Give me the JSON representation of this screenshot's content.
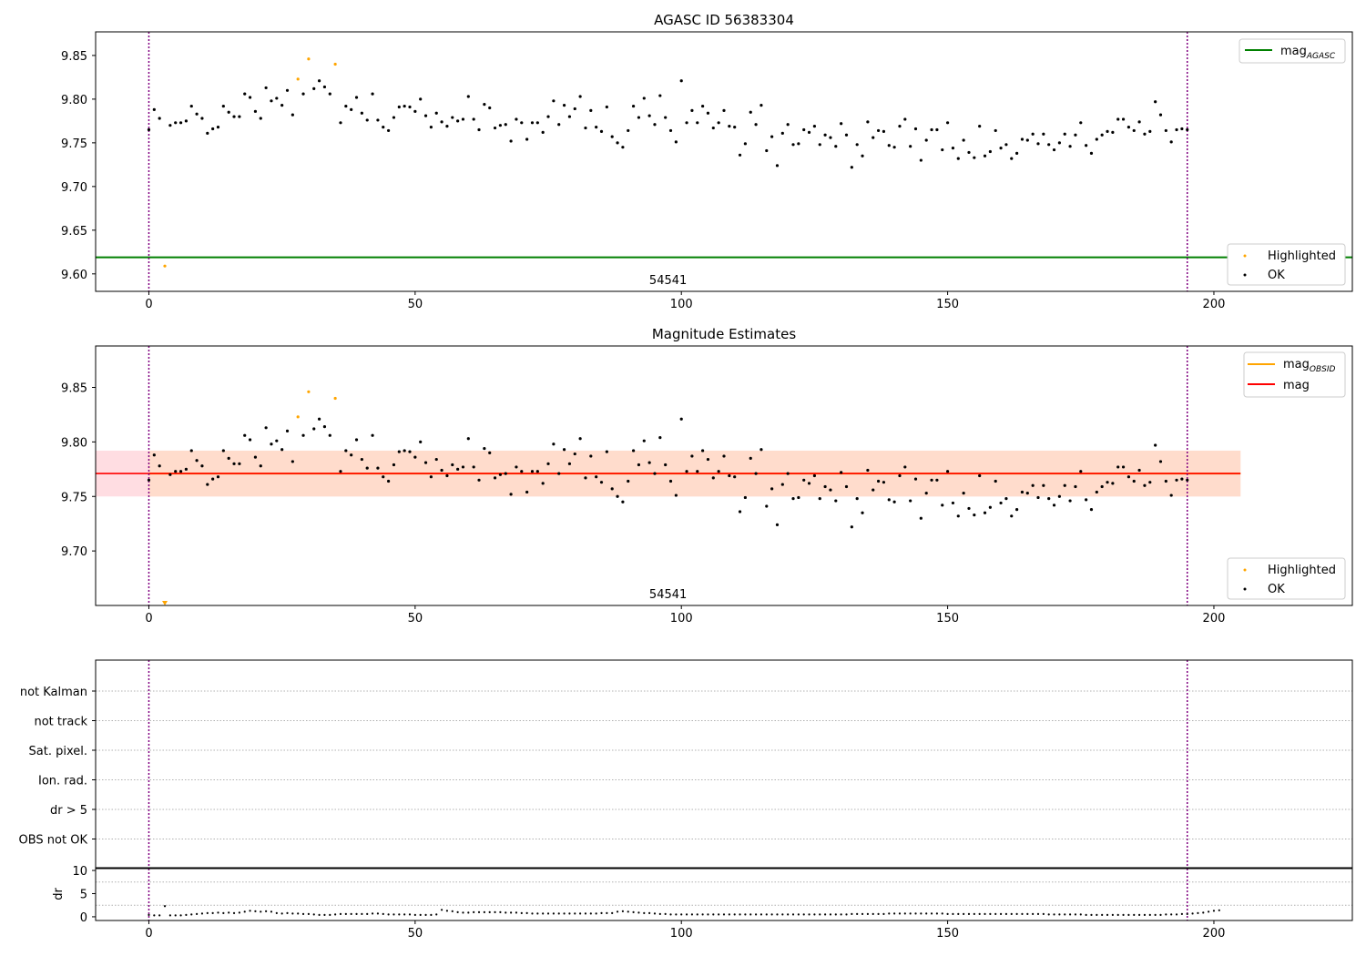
{
  "colors": {
    "ok": "#000000",
    "highlight": "#ffa500",
    "mag_agasc": "#008000",
    "mag_obsid": "#ffa500",
    "mag": "#ff0000",
    "band_outer": "#ffdde2",
    "band_inner": "#ffdccc",
    "obs_line": "#800080",
    "grid": "#b0b0b0"
  },
  "chart_data": [
    {
      "type": "scatter",
      "title": "AGASC ID 56383304",
      "xlabel": "",
      "ylabel": "",
      "xlim": [
        -10,
        226
      ],
      "ylim": [
        9.58,
        9.877
      ],
      "xticks": [
        0,
        50,
        100,
        150,
        200
      ],
      "yticks": [
        9.6,
        9.65,
        9.7,
        9.75,
        9.8,
        9.85
      ],
      "ytick_labels": [
        "9.60",
        "9.65",
        "9.70",
        "9.75",
        "9.80",
        "9.85"
      ],
      "xtick_labels": [
        "0",
        "50",
        "100",
        "150",
        "200"
      ],
      "obsid_label": "54541",
      "obsid_label_x": 97.5,
      "obs_boundaries": [
        0,
        195
      ],
      "hlines": [
        {
          "name": "mag_AGASC",
          "value": 9.619,
          "color_key": "mag_agasc"
        }
      ],
      "legend_top": {
        "placement": "top-right",
        "entries": [
          {
            "label": "mag",
            "sub": "AGASC",
            "color_key": "mag_agasc"
          }
        ]
      },
      "legend_bottom": {
        "placement": "bottom-right",
        "entries": [
          {
            "label": "Highlighted",
            "color_key": "highlight"
          },
          {
            "label": "OK",
            "color_key": "ok"
          }
        ]
      },
      "highlighted": {
        "x": [
          3,
          28,
          30,
          35
        ],
        "y": [
          9.609,
          9.823,
          9.846,
          9.84
        ]
      },
      "ok_y": [
        9.765,
        9.788,
        9.778,
        null,
        9.77,
        9.773,
        9.773,
        9.775,
        9.792,
        9.783,
        9.778,
        9.761,
        9.766,
        9.768,
        9.792,
        9.785,
        9.78,
        9.78,
        9.806,
        9.802,
        9.786,
        9.778,
        9.813,
        9.798,
        9.801,
        9.793,
        9.81,
        9.782,
        null,
        9.806,
        null,
        9.812,
        9.821,
        9.814,
        9.806,
        null,
        9.773,
        9.792,
        9.788,
        9.802,
        9.784,
        9.776,
        9.806,
        9.776,
        9.768,
        9.764,
        9.779,
        9.791,
        9.792,
        9.791,
        9.786,
        9.8,
        9.781,
        9.768,
        9.784,
        9.774,
        9.769,
        9.779,
        9.775,
        9.777,
        9.803,
        9.777,
        9.765,
        9.794,
        9.79,
        9.767,
        9.77,
        9.771,
        9.752,
        9.777,
        9.773,
        9.754,
        9.773,
        9.773,
        9.762,
        9.78,
        9.798,
        9.771,
        9.793,
        9.78,
        9.789,
        9.803,
        9.767,
        9.787,
        9.768,
        9.763,
        9.791,
        9.757,
        9.75,
        9.745,
        9.764,
        9.792,
        9.779,
        9.801,
        9.781,
        9.771,
        9.804,
        9.779,
        9.764,
        9.751,
        9.821,
        9.773,
        9.787,
        9.773,
        9.792,
        9.784,
        9.767,
        9.773,
        9.787,
        9.769,
        9.768,
        9.736,
        9.749,
        9.785,
        9.771,
        9.793,
        9.741,
        9.757,
        9.724,
        9.761,
        9.771,
        9.748,
        9.749,
        9.765,
        9.762,
        9.769,
        9.748,
        9.759,
        9.756,
        9.746,
        9.772,
        9.759,
        9.722,
        9.748,
        9.735,
        9.774,
        9.756,
        9.764,
        9.763,
        9.747,
        9.745,
        9.769,
        9.777,
        9.746,
        9.766,
        9.73,
        9.753,
        9.765,
        9.765,
        9.742,
        9.773,
        9.744,
        9.732,
        9.753,
        9.739,
        9.733,
        9.769,
        9.735,
        9.74,
        9.764,
        9.744,
        9.748,
        9.732,
        9.738,
        9.754,
        9.753,
        9.76,
        9.749,
        9.76,
        9.748,
        9.742,
        9.75,
        9.76,
        9.746,
        9.759,
        9.773,
        9.747,
        9.738,
        9.754,
        9.759,
        9.763,
        9.762,
        9.777,
        9.777,
        9.768,
        9.764,
        9.774,
        9.76,
        9.763,
        9.797,
        9.782,
        9.764,
        9.751,
        9.765,
        9.766,
        9.765
      ]
    },
    {
      "type": "scatter",
      "title": "Magnitude Estimates",
      "xlabel": "",
      "ylabel": "",
      "xlim": [
        -10,
        226
      ],
      "ylim": [
        9.65,
        9.888
      ],
      "xticks": [
        0,
        50,
        100,
        150,
        200
      ],
      "yticks": [
        9.7,
        9.75,
        9.8,
        9.85
      ],
      "ytick_labels": [
        "9.70",
        "9.75",
        "9.80",
        "9.85"
      ],
      "xtick_labels": [
        "0",
        "50",
        "100",
        "150",
        "200"
      ],
      "obsid_label": "54541",
      "obsid_label_x": 97.5,
      "obs_boundaries": [
        0,
        195
      ],
      "mag": 9.771,
      "mag_obsid": 9.771,
      "band_outer": {
        "x": [
          -10,
          205
        ],
        "y": [
          9.75,
          9.792
        ]
      },
      "band_inner": {
        "x": [
          0,
          205
        ],
        "y": [
          9.75,
          9.792
        ]
      },
      "legend_top": {
        "placement": "top-right",
        "entries": [
          {
            "label": "mag",
            "sub": "OBSID",
            "color_key": "mag_obsid"
          },
          {
            "label": "mag",
            "sub": "",
            "color_key": "mag"
          }
        ]
      },
      "legend_bottom": {
        "placement": "bottom-right",
        "entries": [
          {
            "label": "Highlighted",
            "color_key": "highlight"
          },
          {
            "label": "OK",
            "color_key": "ok"
          }
        ]
      },
      "highlighted": {
        "x": [
          28,
          30,
          35
        ],
        "y": [
          9.823,
          9.846,
          9.84
        ]
      },
      "offscale_marker": {
        "x": 3,
        "note": "below axis"
      }
    },
    {
      "type": "scatter",
      "title": "",
      "xlim": [
        -10,
        226
      ],
      "flag_labels": [
        "not Kalman",
        "not track",
        "Sat. pixel.",
        "Ion. rad.",
        "dr > 5",
        "OBS not OK"
      ],
      "obs_boundaries": [
        0,
        195
      ]
    },
    {
      "type": "line",
      "title": "",
      "ylabel": "dr",
      "xlim": [
        -10,
        226
      ],
      "ylim": [
        -0.8,
        10.4
      ],
      "yticks": [
        0,
        5,
        10
      ],
      "ytick_labels": [
        "0",
        "5",
        "10"
      ],
      "xticks": [
        0,
        50,
        100,
        150,
        200
      ],
      "xtick_labels": [
        "0",
        "50",
        "100",
        "150",
        "200"
      ],
      "obs_boundaries": [
        0,
        195
      ],
      "dr_y": [
        0.4,
        0.3,
        0.3,
        2.3,
        0.3,
        0.3,
        0.3,
        0.4,
        0.5,
        0.6,
        0.7,
        0.8,
        0.8,
        0.9,
        0.8,
        0.9,
        0.8,
        0.9,
        1.1,
        1.3,
        1.2,
        1.1,
        1.2,
        1.1,
        0.8,
        0.7,
        0.8,
        0.7,
        0.7,
        0.6,
        0.6,
        0.5,
        0.4,
        0.4,
        0.4,
        0.5,
        0.6,
        0.6,
        0.6,
        0.6,
        0.6,
        0.6,
        0.7,
        0.7,
        0.6,
        0.5,
        0.5,
        0.5,
        0.5,
        0.5,
        0.4,
        0.4,
        0.4,
        0.4,
        0.5,
        1.5,
        1.3,
        1.2,
        1.0,
        0.9,
        0.9,
        1.0,
        1.0,
        1.0,
        1.0,
        1.0,
        1.0,
        0.9,
        0.9,
        0.9,
        0.8,
        0.8,
        0.7,
        0.7,
        0.7,
        0.7,
        0.7,
        0.7,
        0.7,
        0.7,
        0.7,
        0.7,
        0.7,
        0.7,
        0.7,
        0.8,
        0.8,
        0.8,
        1.1,
        1.2,
        1.1,
        1.0,
        0.9,
        0.8,
        0.8,
        0.7,
        0.6,
        0.6,
        0.5,
        0.5,
        0.5,
        0.5,
        0.5,
        0.5,
        0.5,
        0.5,
        0.5,
        0.5,
        0.5,
        0.5,
        0.5,
        0.5,
        0.5,
        0.5,
        0.5,
        0.5,
        0.5,
        0.5,
        0.5,
        0.5,
        0.5,
        0.5,
        0.5,
        0.5,
        0.5,
        0.5,
        0.5,
        0.5,
        0.5,
        0.5,
        0.5,
        0.5,
        0.6,
        0.6,
        0.6,
        0.6,
        0.6,
        0.6,
        0.6,
        0.7,
        0.7,
        0.7,
        0.7,
        0.7,
        0.7,
        0.7,
        0.7,
        0.7,
        0.7,
        0.7,
        0.6,
        0.6,
        0.6,
        0.6,
        0.6,
        0.6,
        0.6,
        0.6,
        0.6,
        0.6,
        0.6,
        0.6,
        0.6,
        0.6,
        0.6,
        0.6,
        0.6,
        0.6,
        0.6,
        0.5,
        0.5,
        0.5,
        0.5,
        0.5,
        0.5,
        0.5,
        0.4,
        0.4,
        0.4,
        0.4,
        0.4,
        0.4,
        0.4,
        0.4,
        0.4,
        0.4,
        0.4,
        0.4,
        0.4,
        0.4,
        0.4,
        0.5,
        0.5,
        0.5,
        0.6,
        0.6,
        0.7,
        0.8,
        0.9,
        1.1,
        1.3,
        1.4
      ]
    }
  ]
}
